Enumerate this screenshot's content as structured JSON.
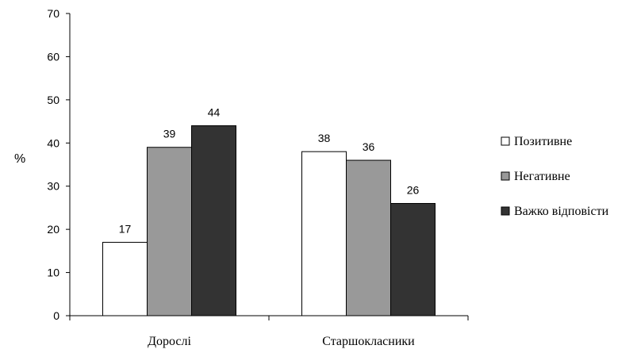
{
  "chart_data": {
    "type": "bar",
    "ylabel": "%",
    "ylim": [
      0,
      70
    ],
    "yticks": [
      0,
      10,
      20,
      30,
      40,
      50,
      60,
      70
    ],
    "categories": [
      "Дорослі",
      "Старшокласники"
    ],
    "series": [
      {
        "name": "Позитивне",
        "values": [
          17,
          38
        ],
        "color": "#ffffff"
      },
      {
        "name": "Негативне",
        "values": [
          39,
          36
        ],
        "color": "#999999"
      },
      {
        "name": "Важко відповісти",
        "values": [
          44,
          26
        ],
        "color": "#333333"
      }
    ],
    "data_labels": true,
    "grid": false,
    "legend_position": "right"
  }
}
